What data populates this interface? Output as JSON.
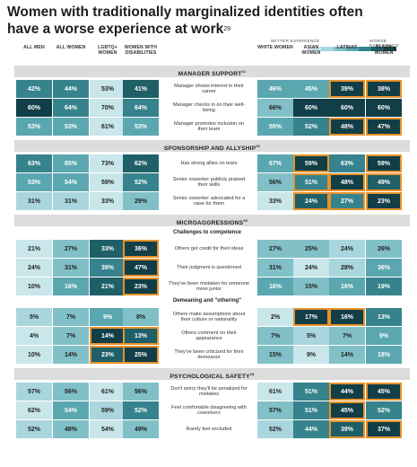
{
  "title": "Women with traditionally marginalized identities often have a worse experience at work",
  "title_ref": "29",
  "legend": {
    "better": "BETTER EXPERIENCE",
    "worse": "WORSE EXPERIENCE",
    "colors": [
      "#c9e6ea",
      "#a9d6dc",
      "#82c0c7",
      "#5aa7b0",
      "#36838d",
      "#1f5f68",
      "#123f47"
    ]
  },
  "columns": [
    "ALL MEN",
    "ALL WOMEN",
    "LGBTQ+ WOMEN",
    "WOMEN WITH DISABILITIES",
    "WHITE WOMEN",
    "ASIAN WOMEN",
    "LATINAS",
    "BLACK WOMEN"
  ],
  "chart_data": {
    "type": "table",
    "columns": [
      "ALL MEN",
      "ALL WOMEN",
      "LGBTQ+ WOMEN",
      "WOMEN WITH DISABILITIES",
      "WHITE WOMEN",
      "ASIAN WOMEN",
      "LATINAS",
      "BLACK WOMEN"
    ],
    "sections": [
      {
        "name": "MANAGER SUPPORT",
        "ref": "31",
        "rows": [
          {
            "label": "Manager shows interest in their career",
            "values": [
              "42%",
              "44%",
              "53%",
              "41%",
              "46%",
              "45%",
              "39%",
              "38%"
            ],
            "highlight": [
              6,
              7
            ]
          },
          {
            "label": "Manager checks in on their well-being",
            "values": [
              "60%",
              "64%",
              "70%",
              "64%",
              "66%",
              "60%",
              "60%",
              "60%"
            ],
            "highlight": []
          },
          {
            "label": "Manager promotes inclusion on their team",
            "values": [
              "53%",
              "53%",
              "61%",
              "53%",
              "55%",
              "52%",
              "48%",
              "47%"
            ],
            "highlight": [
              6,
              7
            ]
          }
        ]
      },
      {
        "name": "SPONSORSHIP AND ALLYSHIP",
        "ref": "32",
        "rows": [
          {
            "label": "Has strong allies on team",
            "values": [
              "63%",
              "65%",
              "73%",
              "62%",
              "67%",
              "59%",
              "63%",
              "59%"
            ],
            "highlight": [
              5,
              7
            ]
          },
          {
            "label": "Senior coworker publicly praised their skills",
            "values": [
              "53%",
              "54%",
              "59%",
              "52%",
              "56%",
              "51%",
              "48%",
              "49%"
            ],
            "highlight": [
              5,
              6,
              7
            ]
          },
          {
            "label": "Senior coworker advocated for a raise for them",
            "values": [
              "31%",
              "31%",
              "33%",
              "29%",
              "33%",
              "24%",
              "27%",
              "23%"
            ],
            "highlight": [
              5,
              6,
              7
            ]
          }
        ]
      },
      {
        "name": "MICROAGGRESSIONS",
        "ref": "33",
        "subsections": [
          {
            "name": "Challenges to competence",
            "rows": [
              {
                "label": "Others get credit for their ideas",
                "values": [
                  "21%",
                  "27%",
                  "33%",
                  "36%",
                  "27%",
                  "25%",
                  "24%",
                  "26%"
                ],
                "highlight": [
                  3
                ]
              },
              {
                "label": "Their judgment is questioned",
                "values": [
                  "24%",
                  "31%",
                  "39%",
                  "47%",
                  "31%",
                  "24%",
                  "28%",
                  "36%"
                ],
                "highlight": [
                  3
                ]
              },
              {
                "label": "They've been mistaken for someone more junior",
                "values": [
                  "10%",
                  "16%",
                  "21%",
                  "23%",
                  "16%",
                  "15%",
                  "16%",
                  "19%"
                ],
                "highlight": [
                  3
                ]
              }
            ]
          },
          {
            "name": "Demeaning and \"othering\"",
            "rows": [
              {
                "label": "Others make assumptions about their culture or nationality",
                "values": [
                  "5%",
                  "7%",
                  "9%",
                  "8%",
                  "2%",
                  "17%",
                  "16%",
                  "13%"
                ],
                "highlight": [
                  5,
                  6
                ]
              },
              {
                "label": "Others comment on their appearance",
                "values": [
                  "4%",
                  "7%",
                  "14%",
                  "13%",
                  "7%",
                  "5%",
                  "7%",
                  "9%"
                ],
                "highlight": [
                  2,
                  3
                ]
              },
              {
                "label": "They've been criticized for their demeanor",
                "values": [
                  "10%",
                  "14%",
                  "23%",
                  "25%",
                  "15%",
                  "9%",
                  "14%",
                  "18%"
                ],
                "highlight": [
                  2,
                  3
                ]
              }
            ]
          }
        ]
      },
      {
        "name": "PSYCHOLOGICAL SAFETY",
        "ref": "34",
        "rows": [
          {
            "label": "Don't worry they'll be penalized for mistakes",
            "values": [
              "57%",
              "56%",
              "61%",
              "56%",
              "61%",
              "51%",
              "44%",
              "45%"
            ],
            "highlight": [
              6,
              7
            ]
          },
          {
            "label": "Feel comfortable disagreeing with coworkers",
            "values": [
              "62%",
              "54%",
              "59%",
              "52%",
              "57%",
              "51%",
              "45%",
              "52%"
            ],
            "highlight": [
              6
            ]
          },
          {
            "label": "Rarely feel excluded",
            "values": [
              "52%",
              "48%",
              "54%",
              "49%",
              "52%",
              "44%",
              "39%",
              "37%"
            ],
            "highlight": [
              6,
              7
            ]
          }
        ]
      }
    ]
  }
}
